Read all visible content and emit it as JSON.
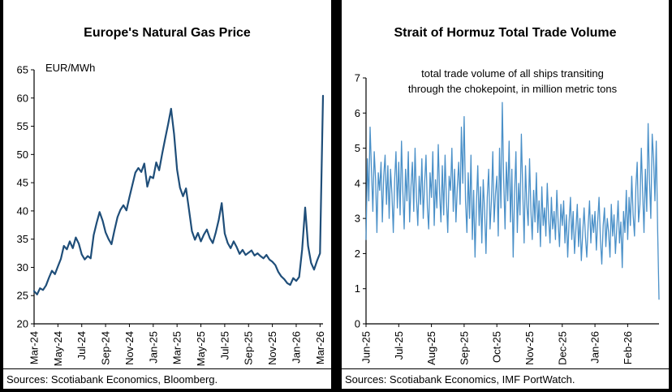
{
  "chart_data": [
    {
      "type": "line",
      "title": "Europe's Natural Gas Price",
      "ylabel": "EUR/MWh",
      "source": "Sources: Scotiabank Economics, Bloomberg.",
      "ylim": [
        20,
        65
      ],
      "ytick_step": 5,
      "line_color": "#1f4e79",
      "x_tick_labels": [
        "Mar-24",
        "May-24",
        "Jul-24",
        "Sep-24",
        "Nov-24",
        "Jan-25",
        "Mar-25",
        "May-25",
        "Jul-25",
        "Sep-25",
        "Nov-25",
        "Jan-26",
        "Mar-26"
      ],
      "x_tick_every_n_points": 8,
      "values": [
        25.8,
        25.2,
        26.3,
        26.0,
        26.8,
        28.2,
        29.4,
        28.8,
        30.2,
        31.5,
        33.8,
        33.2,
        34.6,
        33.4,
        35.3,
        34.2,
        32.3,
        31.4,
        32.0,
        31.6,
        35.7,
        37.9,
        39.8,
        38.3,
        36.2,
        35.0,
        34.1,
        36.6,
        38.9,
        40.2,
        41.0,
        40.1,
        42.4,
        44.6,
        46.8,
        47.6,
        46.9,
        48.4,
        44.3,
        46.1,
        45.8,
        48.6,
        47.2,
        50.1,
        52.8,
        55.4,
        58.1,
        53.6,
        47.3,
        44.1,
        42.6,
        44.0,
        40.3,
        36.4,
        34.9,
        36.1,
        34.6,
        35.8,
        36.7,
        35.2,
        34.3,
        36.2,
        38.4,
        41.4,
        36.0,
        34.3,
        33.4,
        34.6,
        33.6,
        32.4,
        33.1,
        32.2,
        32.6,
        33.0,
        32.1,
        32.5,
        32.0,
        31.6,
        32.2,
        31.4,
        31.0,
        30.4,
        29.2,
        28.4,
        27.9,
        27.2,
        26.9,
        28.1,
        27.6,
        28.3,
        33.2,
        40.6,
        33.8,
        30.8,
        29.6,
        31.2,
        32.5,
        60.4
      ]
    },
    {
      "type": "line",
      "title": "Strait of Hormuz Total Trade Volume",
      "annotation_line1": "total trade volume of all ships transiting",
      "annotation_line2": "through the chokepoint, in million metric tons",
      "source": "Sources: Scotiabank Economics, IMF PortWatch.",
      "ylim": [
        0,
        7
      ],
      "ytick_step": 1,
      "line_color": "#4a90c8",
      "x_tick_labels": [
        "Jun-25",
        "Jul-25",
        "Aug-25",
        "Sep-25",
        "Oct-25",
        "Nov-25",
        "Dec-25",
        "Jan-26",
        "Feb-26"
      ],
      "x_tick_every_n_points": 24,
      "values": [
        2.4,
        4.7,
        3.5,
        5.6,
        4.4,
        3.2,
        4.9,
        4.1,
        2.6,
        4.3,
        3.8,
        4.6,
        2.9,
        4.2,
        4.8,
        3.4,
        4.5,
        3.0,
        4.4,
        3.7,
        2.6,
        4.1,
        4.9,
        3.3,
        4.6,
        3.1,
        5.2,
        3.8,
        2.7,
        4.4,
        3.5,
        4.9,
        2.9,
        3.9,
        4.6,
        3.2,
        5.0,
        3.6,
        2.8,
        4.2,
        3.4,
        4.7,
        3.0,
        4.0,
        4.8,
        3.3,
        2.7,
        4.3,
        3.6,
        4.9,
        2.8,
        4.1,
        3.3,
        5.1,
        3.7,
        2.9,
        4.5,
        3.1,
        4.8,
        3.5,
        2.6,
        4.2,
        3.8,
        5.0,
        3.2,
        4.4,
        2.9,
        3.9,
        4.6,
        3.4,
        5.6,
        4.0,
        5.9,
        3.5,
        2.6,
        4.3,
        3.0,
        4.8,
        2.4,
        3.8,
        1.9,
        3.4,
        4.5,
        2.8,
        3.9,
        2.3,
        4.1,
        3.2,
        2.0,
        3.6,
        4.4,
        2.7,
        3.5,
        4.9,
        2.9,
        3.7,
        4.2,
        2.5,
        5.0,
        3.3,
        6.3,
        4.1,
        2.7,
        4.6,
        3.5,
        5.2,
        2.9,
        4.4,
        1.9,
        3.7,
        4.9,
        2.6,
        4.0,
        3.1,
        5.4,
        3.8,
        2.3,
        4.5,
        3.4,
        2.8,
        4.7,
        3.2,
        2.4,
        3.8,
        2.9,
        4.3,
        2.6,
        3.5,
        2.2,
        3.9,
        2.8,
        3.3,
        2.5,
        4.0,
        3.0,
        2.3,
        3.6,
        2.7,
        3.2,
        2.4,
        3.8,
        2.9,
        2.2,
        3.4,
        2.8,
        3.5,
        2.3,
        3.1,
        1.9,
        2.9,
        3.6,
        2.4,
        3.2,
        2.0,
        2.7,
        3.4,
        2.2,
        3.0,
        1.8,
        2.6,
        3.3,
        2.5,
        1.9,
        2.8,
        3.5,
        2.3,
        3.1,
        2.6,
        3.2,
        2.1,
        2.9,
        3.6,
        2.4,
        1.7,
        2.8,
        3.3,
        2.2,
        3.0,
        2.6,
        1.9,
        3.4,
        2.5,
        3.1,
        2.0,
        2.7,
        3.5,
        2.3,
        2.9,
        1.6,
        3.2,
        2.6,
        3.8,
        2.4,
        3.6,
        2.8,
        4.2,
        3.1,
        2.5,
        3.9,
        4.6,
        2.9,
        3.4,
        5.0,
        3.7,
        2.6,
        4.4,
        3.2,
        5.7,
        4.1,
        3.0,
        5.4,
        4.7,
        3.5,
        5.2,
        2.7,
        0.7
      ]
    }
  ]
}
